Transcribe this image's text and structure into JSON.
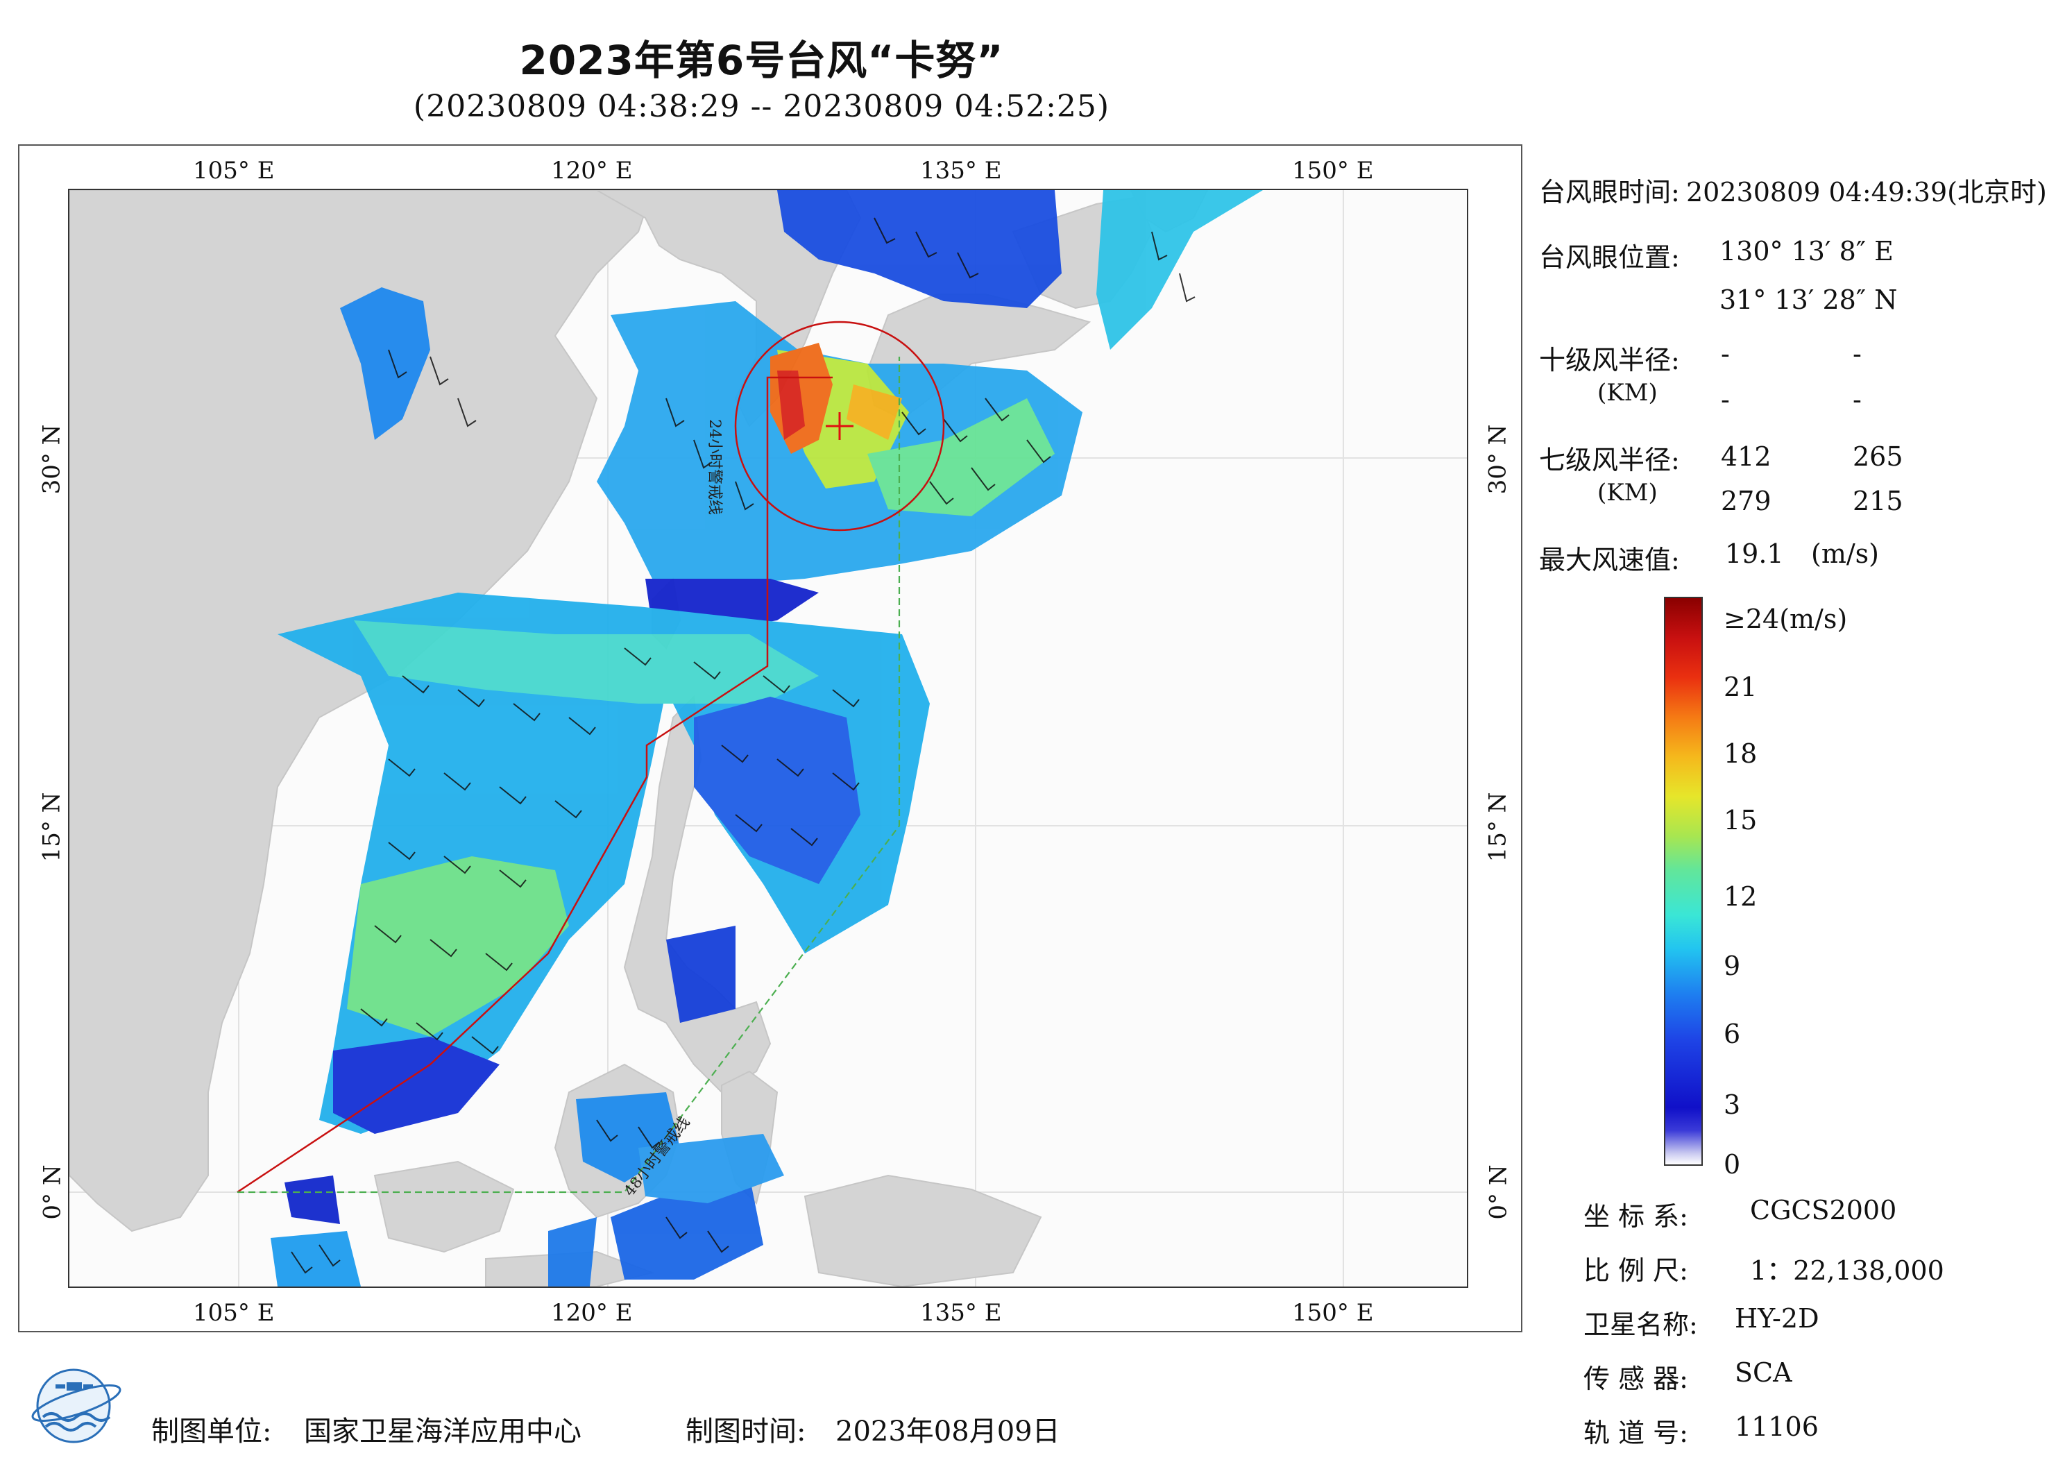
{
  "title": "2023年第6号台风“卡努”",
  "subtitle": "(20230809 04:38:29 -- 20230809 04:52:25)",
  "map": {
    "lon_ticks": [
      "105° E",
      "120° E",
      "135° E",
      "150° E"
    ],
    "lat_ticks": [
      "30° N",
      "15° N",
      "0° N"
    ],
    "annotations": [
      "24小时警戒线",
      "48小时警戒线"
    ],
    "colors": {
      "land": "#d4d4d4",
      "sea": "#fbfbfb",
      "warning_24h": "#c81010",
      "warning_48h": "#4caf50",
      "eye_marker": "#e01010"
    }
  },
  "eye_info": {
    "time_label": "台风眼时间:",
    "time_value": "20230809 04:49:39(北京时)",
    "position_label": "台风眼位置:",
    "lon": "130° 13′ 8″ E",
    "lat": "31° 13′ 28″ N",
    "r10_label": "十级风半径:",
    "r10_unit": "(KM)",
    "r10_values": [
      "-",
      "-",
      "-",
      "-"
    ],
    "r7_label": "七级风半径:",
    "r7_unit": "(KM)",
    "r7_values": [
      "412",
      "265",
      "279",
      "215"
    ],
    "max_wind_label": "最大风速值:",
    "max_wind_value": "19.1",
    "max_wind_unit": "(m/s)"
  },
  "colorbar": {
    "labels": [
      "≥24(m/s)",
      "21",
      "18",
      "15",
      "12",
      "9",
      "6",
      "3",
      "0"
    ],
    "min": 0,
    "max": 24,
    "unit": "m/s"
  },
  "meta": {
    "crs_label": "坐 标 系:",
    "crs_value": "CGCS2000",
    "scale_label": "比 例 尺:",
    "scale_value": "1：22,138,000",
    "satellite_label": "卫星名称:",
    "satellite_value": "HY-2D",
    "sensor_label": "传 感 器:",
    "sensor_value": "SCA",
    "orbit_label": "轨 道 号:",
    "orbit_value": "11106"
  },
  "footer": {
    "producer_label": "制图单位:",
    "producer_value": "国家卫星海洋应用中心",
    "date_label": "制图时间:",
    "date_value": "2023年08月09日"
  }
}
